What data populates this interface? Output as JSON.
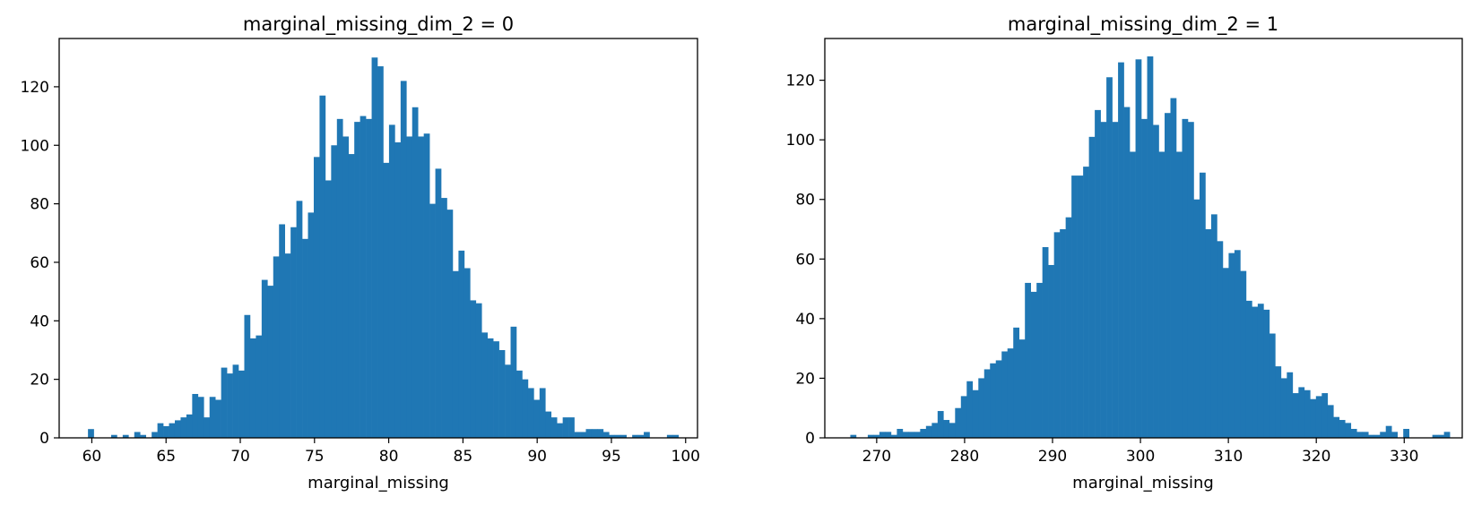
{
  "chart_data": [
    {
      "type": "bar",
      "title": "marginal_missing_dim_2 = 0",
      "xlabel": "marginal_missing",
      "ylabel": "",
      "xlim": [
        57.8,
        100.8
      ],
      "ylim": [
        0,
        136.5
      ],
      "xticks": [
        60,
        65,
        70,
        75,
        80,
        85,
        90,
        95,
        100
      ],
      "xtick_labels": [
        "60",
        "65",
        "70",
        "75",
        "80",
        "85",
        "90",
        "95",
        "100"
      ],
      "yticks": [
        0,
        20,
        40,
        60,
        80,
        100,
        120
      ],
      "ytick_labels": [
        "0",
        "20",
        "40",
        "60",
        "80",
        "100",
        "120"
      ],
      "bin_start": 59.74,
      "bin_width": 0.39,
      "values": [
        3,
        0,
        0,
        0,
        1,
        0,
        1,
        0,
        2,
        1,
        0,
        2,
        5,
        4,
        5,
        6,
        7,
        8,
        15,
        14,
        7,
        14,
        13,
        24,
        22,
        25,
        23,
        42,
        34,
        35,
        54,
        52,
        62,
        73,
        63,
        72,
        81,
        68,
        77,
        96,
        117,
        88,
        100,
        109,
        103,
        97,
        108,
        110,
        109,
        130,
        127,
        94,
        107,
        101,
        122,
        103,
        113,
        103,
        104,
        80,
        92,
        82,
        78,
        57,
        64,
        58,
        47,
        46,
        36,
        34,
        33,
        30,
        25,
        38,
        23,
        20,
        17,
        13,
        17,
        9,
        7,
        5,
        7,
        7,
        2,
        2,
        3,
        3,
        3,
        2,
        1,
        1,
        1,
        0,
        1,
        1,
        2,
        0,
        0,
        0,
        1,
        1
      ],
      "color": "#1f77b4",
      "grid": false
    },
    {
      "type": "bar",
      "title": "marginal_missing_dim_2 = 1",
      "xlabel": "marginal_missing",
      "ylabel": "",
      "xlim": [
        264.1,
        336.6
      ],
      "ylim": [
        0,
        134
      ],
      "xticks": [
        270,
        280,
        290,
        300,
        310,
        320,
        330
      ],
      "xtick_labels": [
        "270",
        "280",
        "290",
        "300",
        "310",
        "320",
        "330"
      ],
      "yticks": [
        0,
        20,
        40,
        60,
        80,
        100,
        120
      ],
      "ytick_labels": [
        "0",
        "20",
        "40",
        "60",
        "80",
        "100",
        "120"
      ],
      "bin_start": 267.0,
      "bin_width": 0.662,
      "values": [
        1,
        0,
        0,
        1,
        1,
        2,
        2,
        1,
        3,
        2,
        2,
        2,
        3,
        4,
        5,
        9,
        6,
        5,
        10,
        14,
        19,
        16,
        20,
        23,
        25,
        26,
        29,
        30,
        37,
        33,
        52,
        49,
        52,
        64,
        58,
        69,
        70,
        74,
        88,
        88,
        91,
        101,
        110,
        106,
        121,
        106,
        126,
        111,
        96,
        127,
        107,
        128,
        105,
        96,
        109,
        114,
        96,
        107,
        106,
        80,
        89,
        70,
        75,
        66,
        57,
        62,
        63,
        56,
        46,
        44,
        45,
        43,
        35,
        24,
        20,
        22,
        15,
        17,
        16,
        13,
        14,
        15,
        11,
        7,
        6,
        5,
        3,
        2,
        2,
        1,
        1,
        2,
        4,
        2,
        0,
        3,
        0,
        0,
        0,
        0,
        1,
        1,
        2
      ]
    }
  ]
}
